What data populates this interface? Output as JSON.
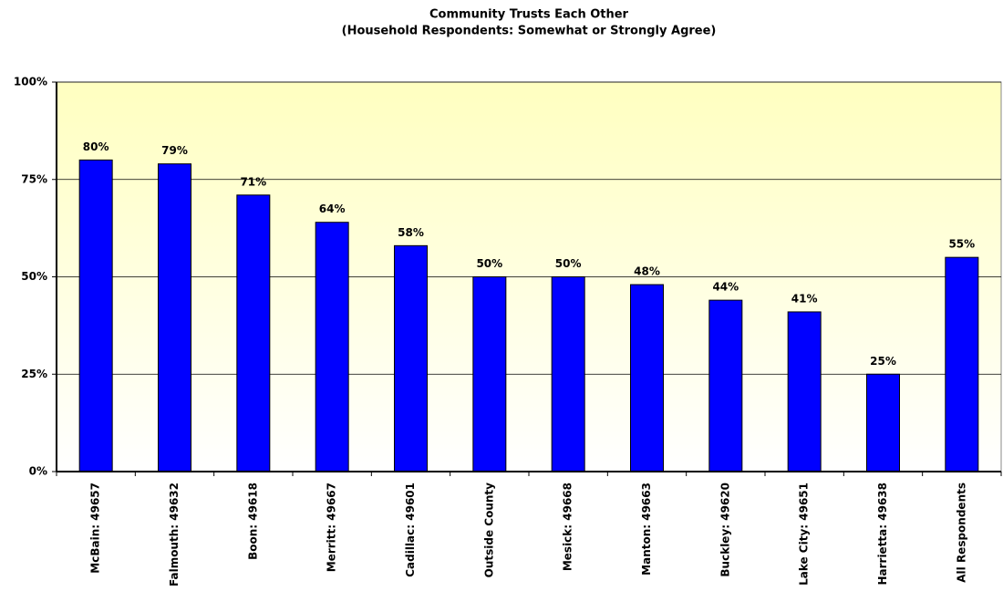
{
  "chart_data": {
    "type": "bar",
    "title": "Community Trusts Each Other",
    "subtitle": "(Household Respondents: Somewhat or Strongly Agree)",
    "categories": [
      "McBain: 49657",
      "Falmouth: 49632",
      "Boon: 49618",
      "Merritt: 49667",
      "Cadillac: 49601",
      "Outside County",
      "Mesick: 49668",
      "Manton: 49663",
      "Buckley: 49620",
      "Lake City: 49651",
      "Harrietta: 49638",
      "All Respondents"
    ],
    "values": [
      80,
      79,
      71,
      64,
      58,
      50,
      50,
      48,
      44,
      41,
      25,
      55
    ],
    "value_labels": [
      "80%",
      "79%",
      "71%",
      "64%",
      "58%",
      "50%",
      "50%",
      "48%",
      "44%",
      "41%",
      "25%",
      "55%"
    ],
    "color": "#0000ff",
    "ylim": [
      0,
      100
    ],
    "yticks": [
      {
        "value": 0,
        "label": "0%"
      },
      {
        "value": 25,
        "label": "25%"
      },
      {
        "value": 50,
        "label": "50%"
      },
      {
        "value": 75,
        "label": "75%"
      },
      {
        "value": 100,
        "label": "100%"
      }
    ],
    "grid": true
  }
}
